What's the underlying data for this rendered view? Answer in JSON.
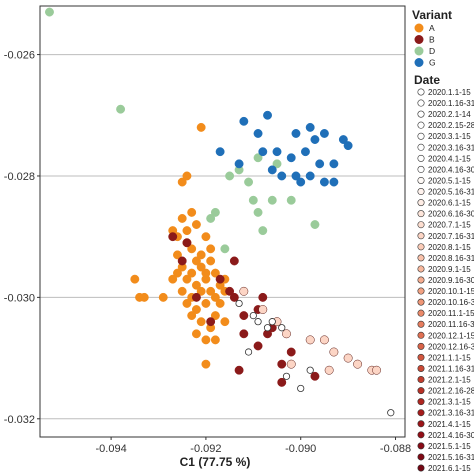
{
  "chart_data": {
    "type": "scatter",
    "xlabel": "C1 (77.75 %)",
    "ylabel": "",
    "xlim": [
      -0.0955,
      -0.0878
    ],
    "ylim": [
      -0.0323,
      -0.0252
    ],
    "x_ticks": [
      -0.094,
      -0.092,
      -0.09,
      -0.088
    ],
    "x_tick_labels": [
      "-0.094",
      "-0.092",
      "-0.090",
      "-0.088"
    ],
    "y_ticks": [
      -0.026,
      -0.028,
      -0.03,
      -0.032
    ],
    "y_tick_labels": [
      "-0.026",
      "-0.028",
      "-0.030",
      "-0.032"
    ],
    "grid": "horizontal",
    "legend_placement": "right",
    "variant_legend": {
      "title": "Variant",
      "items": [
        {
          "label": "A",
          "color": "#F28C1B"
        },
        {
          "label": "B",
          "color": "#8B1A1A"
        },
        {
          "label": "D",
          "color": "#9ACB9A"
        },
        {
          "label": "G",
          "color": "#1F6FB8"
        }
      ]
    },
    "date_legend": {
      "title": "Date",
      "items": [
        {
          "label": "2020.1.1-15",
          "color": "#FFFFFF"
        },
        {
          "label": "2020.1.16-31",
          "color": "#FFFFFF"
        },
        {
          "label": "2020.2.1-14",
          "color": "#FFFFFF"
        },
        {
          "label": "2020.2.15-28",
          "color": "#FFFFFF"
        },
        {
          "label": "2020.3.1-15",
          "color": "#FFFFFF"
        },
        {
          "label": "2020.3.16-31",
          "color": "#FFFFFF"
        },
        {
          "label": "2020.4.1-15",
          "color": "#FFFFFF"
        },
        {
          "label": "2020.4.16-30",
          "color": "#FFFFFF"
        },
        {
          "label": "2020.5.1-15",
          "color": "#FFFAF7"
        },
        {
          "label": "2020.5.16-31",
          "color": "#FFF3EE"
        },
        {
          "label": "2020.6.1-15",
          "color": "#FEEDE5"
        },
        {
          "label": "2020.6.16-30",
          "color": "#FEE6DB"
        },
        {
          "label": "2020.7.1-15",
          "color": "#FDDED0"
        },
        {
          "label": "2020.7.16-31",
          "color": "#FCD5C5"
        },
        {
          "label": "2020.8.1-15",
          "color": "#FBCCB8"
        },
        {
          "label": "2020.8.16-31",
          "color": "#FAC2AB"
        },
        {
          "label": "2020.9.1-15",
          "color": "#F8B89D"
        },
        {
          "label": "2020.9.16-30",
          "color": "#F6AD90"
        },
        {
          "label": "2020.10.1-15",
          "color": "#F3A283"
        },
        {
          "label": "2020.10.16-31",
          "color": "#EF9676"
        },
        {
          "label": "2020.11.1-15",
          "color": "#EB8A6A"
        },
        {
          "label": "2020.11.16-30",
          "color": "#E67D5E"
        },
        {
          "label": "2020.12.1-15",
          "color": "#E07053"
        },
        {
          "label": "2020.12.16-31",
          "color": "#D96348"
        },
        {
          "label": "2021.1.1-15",
          "color": "#D2563E"
        },
        {
          "label": "2021.1.16-31",
          "color": "#CA4935"
        },
        {
          "label": "2021.2.1-15",
          "color": "#C23D2D"
        },
        {
          "label": "2021.2.16-28",
          "color": "#B93126"
        },
        {
          "label": "2021.3.1-15",
          "color": "#B02620"
        },
        {
          "label": "2021.3.16-31",
          "color": "#A61C1B"
        },
        {
          "label": "2021.4.1-15",
          "color": "#9C1418"
        },
        {
          "label": "2021.4.16-30",
          "color": "#920E16"
        },
        {
          "label": "2021.5.1-15",
          "color": "#880A15"
        },
        {
          "label": "2021.5.16-31",
          "color": "#7E0814"
        },
        {
          "label": "2021.6.1-15",
          "color": "#740613"
        }
      ]
    },
    "series": [
      {
        "name": "A",
        "color": "#F28C1B",
        "points": [
          [
            -0.0921,
            -0.0272
          ],
          [
            -0.0924,
            -0.028
          ],
          [
            -0.0925,
            -0.0281
          ],
          [
            -0.0923,
            -0.0286
          ],
          [
            -0.0925,
            -0.0287
          ],
          [
            -0.0922,
            -0.0288
          ],
          [
            -0.0927,
            -0.0289
          ],
          [
            -0.0924,
            -0.0291
          ],
          [
            -0.092,
            -0.029
          ],
          [
            -0.0926,
            -0.0293
          ],
          [
            -0.0923,
            -0.0292
          ],
          [
            -0.0921,
            -0.0293
          ],
          [
            -0.0919,
            -0.0292
          ],
          [
            -0.0925,
            -0.0295
          ],
          [
            -0.0923,
            -0.0296
          ],
          [
            -0.0921,
            -0.0295
          ],
          [
            -0.0919,
            -0.0294
          ],
          [
            -0.0924,
            -0.0297
          ],
          [
            -0.0922,
            -0.0298
          ],
          [
            -0.092,
            -0.0297
          ],
          [
            -0.0918,
            -0.0296
          ],
          [
            -0.0925,
            -0.0299
          ],
          [
            -0.0923,
            -0.03
          ],
          [
            -0.0921,
            -0.0299
          ],
          [
            -0.0919,
            -0.0299
          ],
          [
            -0.0917,
            -0.0298
          ],
          [
            -0.0924,
            -0.0301
          ],
          [
            -0.0922,
            -0.0302
          ],
          [
            -0.092,
            -0.0301
          ],
          [
            -0.0918,
            -0.03
          ],
          [
            -0.0926,
            -0.0296
          ],
          [
            -0.0927,
            -0.0297
          ],
          [
            -0.0922,
            -0.0294
          ],
          [
            -0.092,
            -0.0296
          ],
          [
            -0.0923,
            -0.0303
          ],
          [
            -0.0921,
            -0.0304
          ],
          [
            -0.0919,
            -0.0305
          ],
          [
            -0.0917,
            -0.0301
          ],
          [
            -0.0918,
            -0.0303
          ],
          [
            -0.0922,
            -0.0306
          ],
          [
            -0.092,
            -0.0307
          ],
          [
            -0.0918,
            -0.0307
          ],
          [
            -0.0916,
            -0.0304
          ],
          [
            -0.0934,
            -0.03
          ],
          [
            -0.0933,
            -0.03
          ],
          [
            -0.0935,
            -0.0297
          ],
          [
            -0.0929,
            -0.03
          ],
          [
            -0.0916,
            -0.0297
          ],
          [
            -0.0916,
            -0.0299
          ],
          [
            -0.0924,
            -0.0289
          ],
          [
            -0.0926,
            -0.029
          ],
          [
            -0.092,
            -0.0311
          ]
        ]
      },
      {
        "name": "B",
        "color": "#8B1A1A",
        "points": [
          [
            -0.0927,
            -0.029
          ],
          [
            -0.0924,
            -0.0291
          ],
          [
            -0.0925,
            -0.0294
          ],
          [
            -0.0917,
            -0.0297
          ],
          [
            -0.0914,
            -0.0294
          ],
          [
            -0.0915,
            -0.0299
          ],
          [
            -0.0919,
            -0.0304
          ],
          [
            -0.0922,
            -0.03
          ],
          [
            -0.0908,
            -0.03
          ],
          [
            -0.0909,
            -0.0302
          ],
          [
            -0.0912,
            -0.0306
          ],
          [
            -0.0913,
            -0.0312
          ],
          [
            -0.0909,
            -0.0308
          ],
          [
            -0.0907,
            -0.0306
          ],
          [
            -0.0904,
            -0.0311
          ],
          [
            -0.0904,
            -0.0314
          ],
          [
            -0.0897,
            -0.0313
          ],
          [
            -0.0902,
            -0.0309
          ],
          [
            -0.0914,
            -0.03
          ],
          [
            -0.0906,
            -0.0305
          ],
          [
            -0.0912,
            -0.0303
          ]
        ]
      },
      {
        "name": "D",
        "color": "#9ACB9A",
        "points": [
          [
            -0.0953,
            -0.0253
          ],
          [
            -0.0938,
            -0.0269
          ],
          [
            -0.0909,
            -0.0277
          ],
          [
            -0.0913,
            -0.0279
          ],
          [
            -0.0911,
            -0.0281
          ],
          [
            -0.0905,
            -0.0278
          ],
          [
            -0.091,
            -0.0284
          ],
          [
            -0.0906,
            -0.0284
          ],
          [
            -0.0909,
            -0.0286
          ],
          [
            -0.0902,
            -0.0284
          ],
          [
            -0.0897,
            -0.0288
          ],
          [
            -0.0915,
            -0.028
          ],
          [
            -0.0916,
            -0.0292
          ],
          [
            -0.0918,
            -0.0286
          ],
          [
            -0.0919,
            -0.0287
          ],
          [
            -0.0908,
            -0.0289
          ]
        ]
      },
      {
        "name": "G",
        "color": "#1F6FB8",
        "points": [
          [
            -0.0912,
            -0.0271
          ],
          [
            -0.0907,
            -0.027
          ],
          [
            -0.0898,
            -0.0272
          ],
          [
            -0.0895,
            -0.0273
          ],
          [
            -0.0891,
            -0.0274
          ],
          [
            -0.089,
            -0.0275
          ],
          [
            -0.0897,
            -0.0274
          ],
          [
            -0.0901,
            -0.0273
          ],
          [
            -0.0909,
            -0.0273
          ],
          [
            -0.0917,
            -0.0276
          ],
          [
            -0.0908,
            -0.0276
          ],
          [
            -0.0905,
            -0.0276
          ],
          [
            -0.0902,
            -0.0277
          ],
          [
            -0.0899,
            -0.0276
          ],
          [
            -0.0896,
            -0.0278
          ],
          [
            -0.0893,
            -0.0278
          ],
          [
            -0.0904,
            -0.028
          ],
          [
            -0.0901,
            -0.028
          ],
          [
            -0.0898,
            -0.028
          ],
          [
            -0.0895,
            -0.0281
          ],
          [
            -0.0906,
            -0.0279
          ],
          [
            -0.0913,
            -0.0278
          ],
          [
            -0.09,
            -0.0281
          ],
          [
            -0.0893,
            -0.0281
          ]
        ]
      },
      {
        "name": "",
        "color": "#FCD5C5",
        "points": [
          [
            -0.0912,
            -0.0299
          ],
          [
            -0.0908,
            -0.0302
          ],
          [
            -0.0905,
            -0.0304
          ],
          [
            -0.0903,
            -0.0306
          ],
          [
            -0.0898,
            -0.0307
          ],
          [
            -0.0895,
            -0.0307
          ],
          [
            -0.0893,
            -0.0309
          ],
          [
            -0.089,
            -0.031
          ],
          [
            -0.0888,
            -0.0311
          ],
          [
            -0.0885,
            -0.0312
          ],
          [
            -0.0884,
            -0.0312
          ],
          [
            -0.0894,
            -0.0312
          ],
          [
            -0.0902,
            -0.0311
          ]
        ]
      },
      {
        "name": "",
        "color": "#FFFFFF",
        "points": [
          [
            -0.0913,
            -0.0301
          ],
          [
            -0.091,
            -0.0303
          ],
          [
            -0.0906,
            -0.0304
          ],
          [
            -0.0904,
            -0.0305
          ],
          [
            -0.0907,
            -0.0305
          ],
          [
            -0.0909,
            -0.0304
          ],
          [
            -0.0898,
            -0.0312
          ],
          [
            -0.09,
            -0.0315
          ],
          [
            -0.0881,
            -0.0319
          ],
          [
            -0.0911,
            -0.0309
          ],
          [
            -0.0903,
            -0.0313
          ]
        ]
      }
    ]
  }
}
